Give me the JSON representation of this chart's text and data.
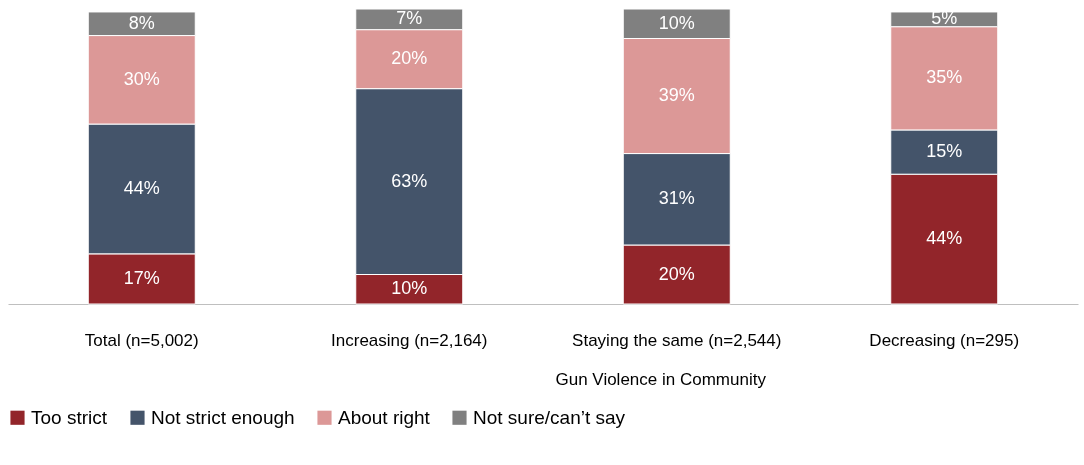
{
  "chart_data": {
    "type": "bar",
    "stacked": true,
    "legend": "bottom",
    "xlabel": "Gun Violence in Community",
    "categories": [
      "Total (n=5,002)",
      "Increasing (n=2,164)",
      "Staying the same (n=2,544)",
      "Decreasing (n=295)"
    ],
    "series": [
      {
        "name": "Too strict",
        "color": "#92252a",
        "values": [
          17,
          10,
          20,
          44
        ],
        "value_labels": [
          "17%",
          "10%",
          "20%",
          "44%"
        ]
      },
      {
        "name": "Not strict enough",
        "color": "#44546a",
        "values": [
          44,
          63,
          31,
          15
        ],
        "value_labels": [
          "44%",
          "63%",
          "31%",
          "15%"
        ]
      },
      {
        "name": "About right",
        "color": "#dc9897",
        "values": [
          30,
          20,
          39,
          35
        ],
        "value_labels": [
          "30%",
          "20%",
          "39%",
          "35%"
        ]
      },
      {
        "name": "Not sure/can’t say",
        "color": "#808080",
        "values": [
          8,
          7,
          10,
          5
        ],
        "value_labels": [
          "8%",
          "7%",
          "10%",
          "5%"
        ]
      }
    ]
  }
}
